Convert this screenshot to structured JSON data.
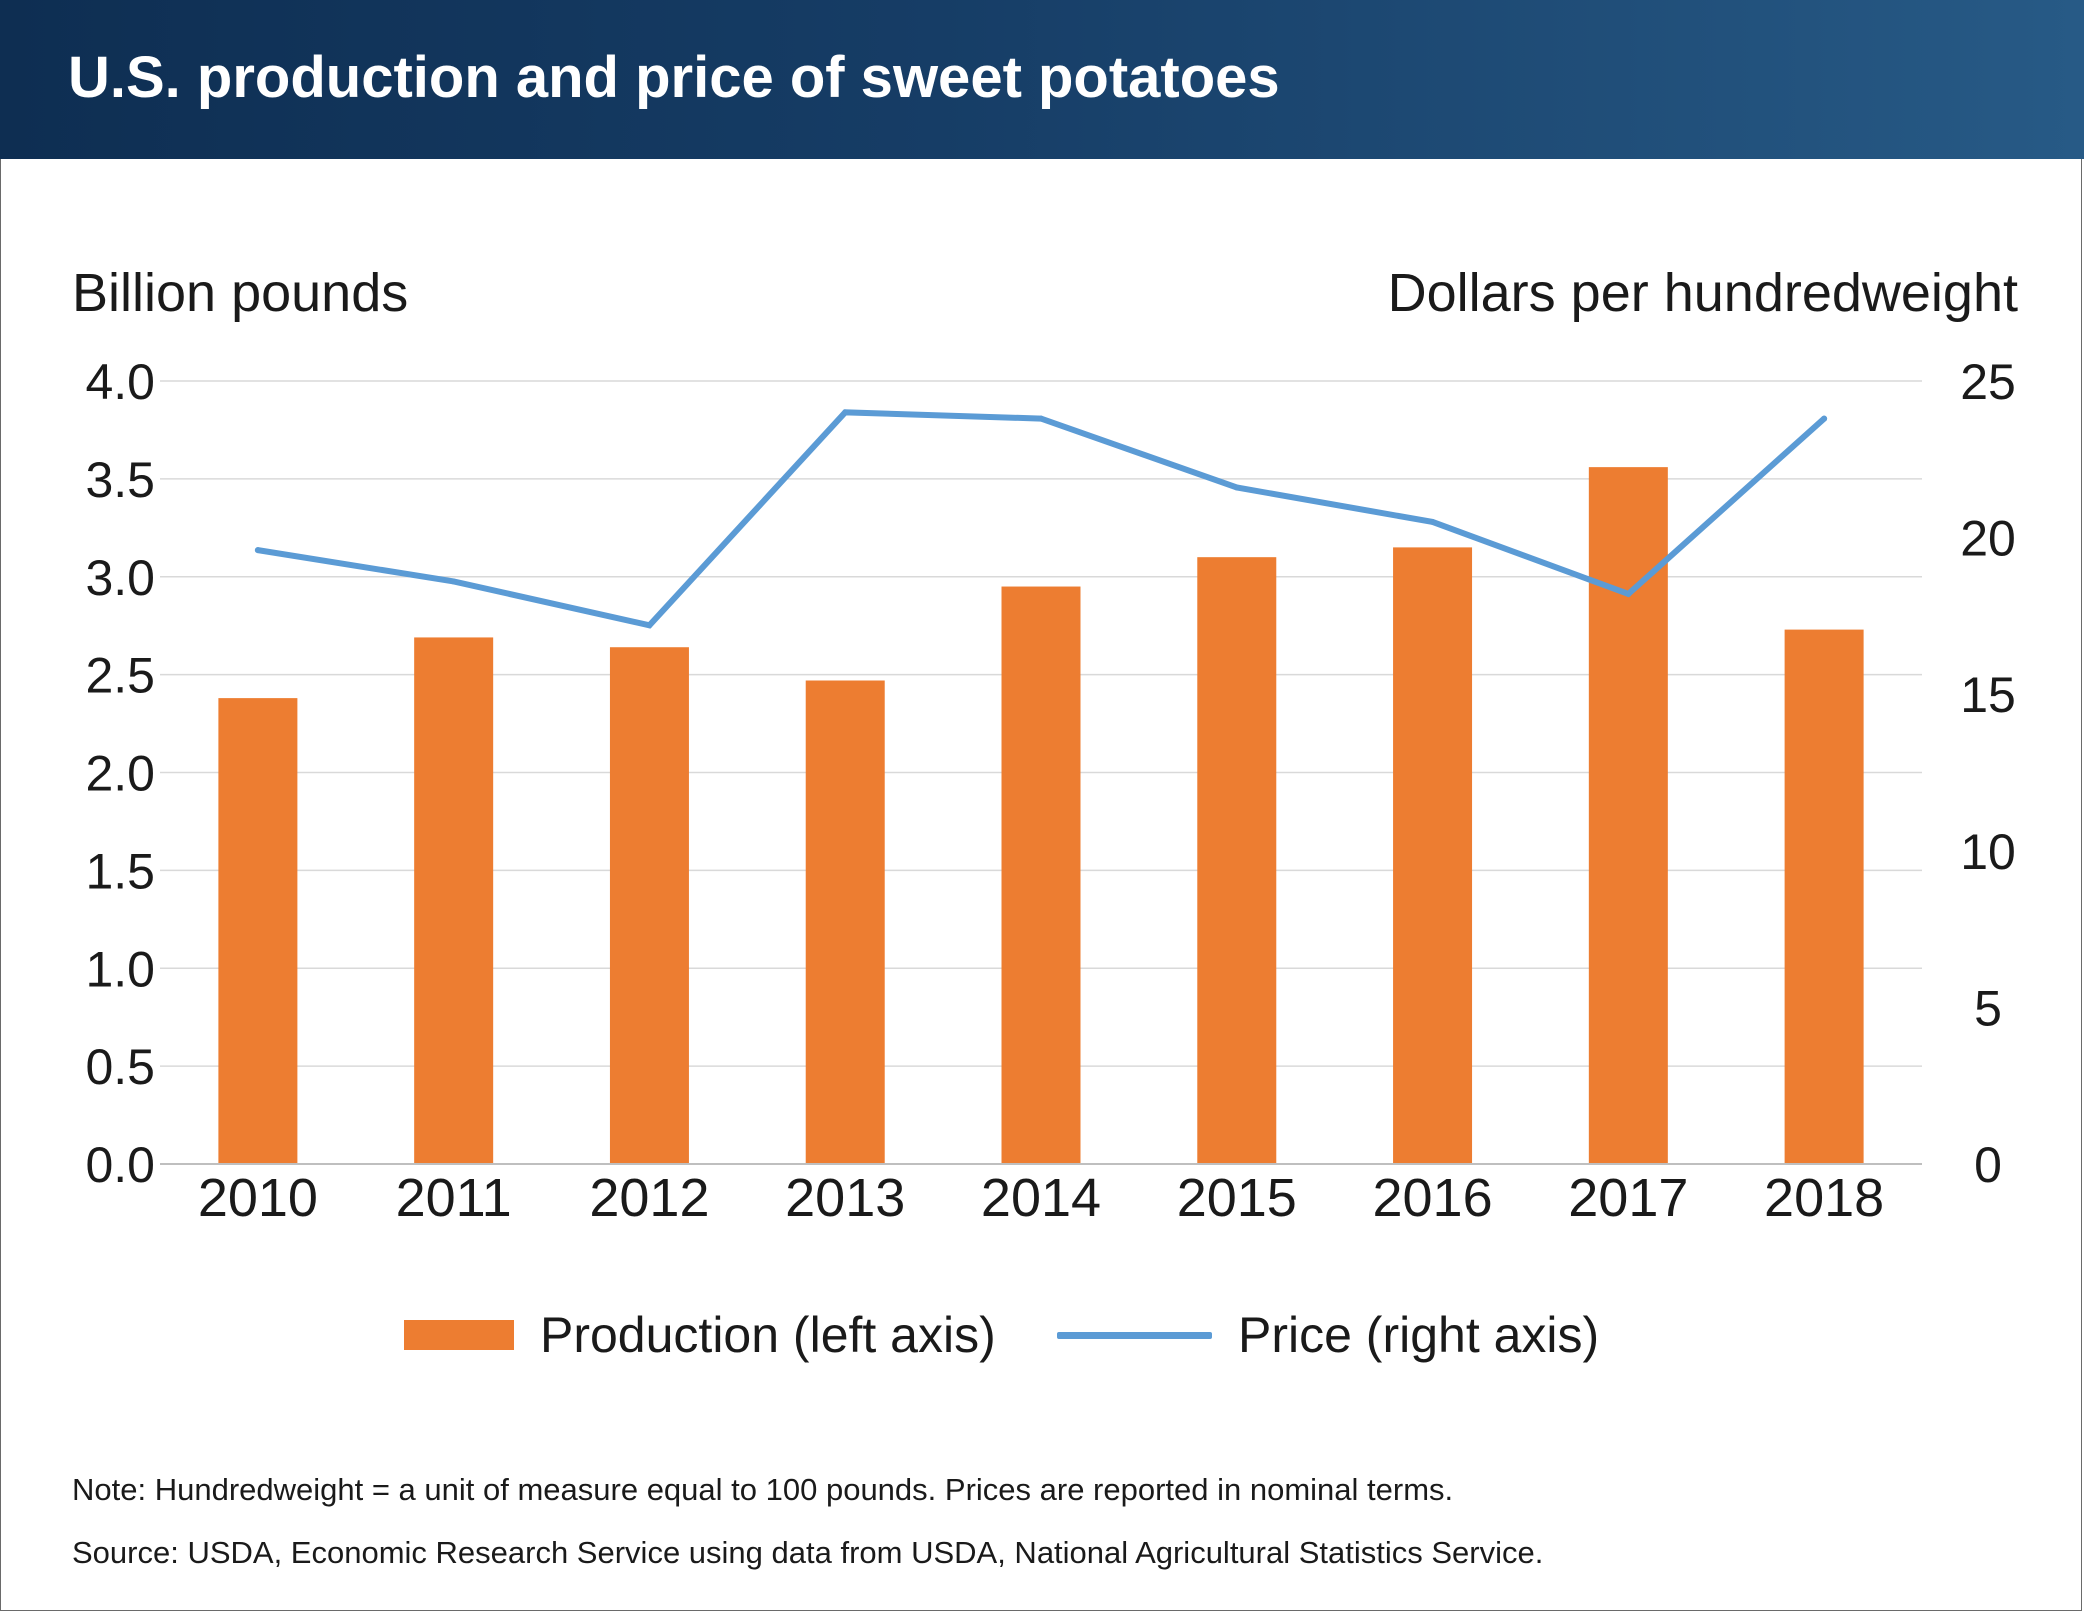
{
  "header": {
    "title": "U.S. production and price of sweet potatoes"
  },
  "colors": {
    "header_dark": "#0e2e52",
    "header_light": "#275a86",
    "bar": "#ed7d31",
    "line": "#5b9bd5",
    "grid": "#d9d9d9"
  },
  "legend": {
    "production_label": "Production (left axis)",
    "price_label": "Price (right axis)"
  },
  "notes": {
    "note": "Note: Hundredweight = a unit of measure equal to 100 pounds. Prices are reported in nominal terms.",
    "source": "Source: USDA, Economic Research Service using data from USDA, National Agricultural Statistics Service."
  },
  "chart_data": {
    "type": "bar",
    "title": "U.S. production and price of sweet potatoes",
    "categories": [
      "2010",
      "2011",
      "2012",
      "2013",
      "2014",
      "2015",
      "2016",
      "2017",
      "2018"
    ],
    "ylabel": "Billion pounds",
    "ylabel_right": "Dollars per hundredweight",
    "ylim": [
      0,
      4.0
    ],
    "ylim_right": [
      0,
      25
    ],
    "yticks": [
      "0.0",
      "0.5",
      "1.0",
      "1.5",
      "2.0",
      "2.5",
      "3.0",
      "3.5",
      "4.0"
    ],
    "yticks_right": [
      "0",
      "5",
      "10",
      "15",
      "20",
      "25"
    ],
    "grid": true,
    "legend_position": "bottom",
    "series": [
      {
        "name": "Production (left axis)",
        "type": "bar",
        "axis": "left",
        "values": [
          2.38,
          2.69,
          2.64,
          2.47,
          2.95,
          3.1,
          3.15,
          3.56,
          2.73
        ]
      },
      {
        "name": "Price (right axis)",
        "type": "line",
        "axis": "right",
        "values": [
          19.6,
          18.6,
          17.2,
          24.0,
          23.8,
          21.6,
          20.5,
          18.2,
          23.8
        ]
      }
    ]
  }
}
